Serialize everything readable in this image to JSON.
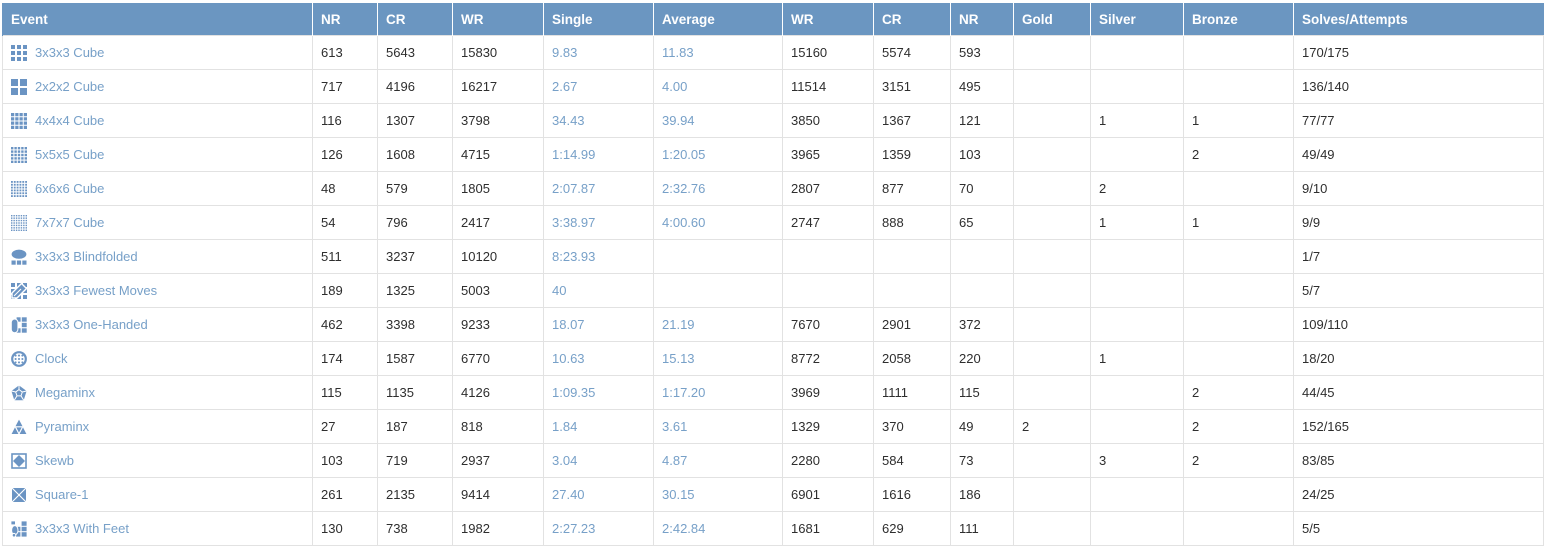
{
  "colors": {
    "header_bg": "#6b96c1",
    "header_text": "#ffffff",
    "link": "#77a0c8",
    "icon_blue": "#6b94c3",
    "cell_text": "#2e2e2e",
    "grid_line": "#e2e2e2",
    "row_bg": "#ffffff"
  },
  "table": {
    "columns": [
      {
        "key": "event",
        "label": "Event"
      },
      {
        "key": "nr_single",
        "label": "NR"
      },
      {
        "key": "cr_single",
        "label": "CR"
      },
      {
        "key": "wr_single",
        "label": "WR"
      },
      {
        "key": "single",
        "label": "Single"
      },
      {
        "key": "average",
        "label": "Average"
      },
      {
        "key": "wr_average",
        "label": "WR"
      },
      {
        "key": "cr_average",
        "label": "CR"
      },
      {
        "key": "nr_average",
        "label": "NR"
      },
      {
        "key": "gold",
        "label": "Gold"
      },
      {
        "key": "silver",
        "label": "Silver"
      },
      {
        "key": "bronze",
        "label": "Bronze"
      },
      {
        "key": "solves_attempts",
        "label": "Solves/Attempts"
      }
    ],
    "rows": [
      {
        "event": "3x3x3 Cube",
        "icon": "cube-3x3-icon",
        "nr_single": "613",
        "cr_single": "5643",
        "wr_single": "15830",
        "single": "9.83",
        "average": "11.83",
        "wr_average": "15160",
        "cr_average": "5574",
        "nr_average": "593",
        "gold": "",
        "silver": "",
        "bronze": "",
        "solves_attempts": "170/175"
      },
      {
        "event": "2x2x2 Cube",
        "icon": "cube-2x2-icon",
        "nr_single": "717",
        "cr_single": "4196",
        "wr_single": "16217",
        "single": "2.67",
        "average": "4.00",
        "wr_average": "11514",
        "cr_average": "3151",
        "nr_average": "495",
        "gold": "",
        "silver": "",
        "bronze": "",
        "solves_attempts": "136/140"
      },
      {
        "event": "4x4x4 Cube",
        "icon": "cube-4x4-icon",
        "nr_single": "116",
        "cr_single": "1307",
        "wr_single": "3798",
        "single": "34.43",
        "average": "39.94",
        "wr_average": "3850",
        "cr_average": "1367",
        "nr_average": "121",
        "gold": "",
        "silver": "1",
        "bronze": "1",
        "solves_attempts": "77/77"
      },
      {
        "event": "5x5x5 Cube",
        "icon": "cube-5x5-icon",
        "nr_single": "126",
        "cr_single": "1608",
        "wr_single": "4715",
        "single": "1:14.99",
        "average": "1:20.05",
        "wr_average": "3965",
        "cr_average": "1359",
        "nr_average": "103",
        "gold": "",
        "silver": "",
        "bronze": "2",
        "solves_attempts": "49/49"
      },
      {
        "event": "6x6x6 Cube",
        "icon": "cube-6x6-icon",
        "nr_single": "48",
        "cr_single": "579",
        "wr_single": "1805",
        "single": "2:07.87",
        "average": "2:32.76",
        "wr_average": "2807",
        "cr_average": "877",
        "nr_average": "70",
        "gold": "",
        "silver": "2",
        "bronze": "",
        "solves_attempts": "9/10"
      },
      {
        "event": "7x7x7 Cube",
        "icon": "cube-7x7-icon",
        "nr_single": "54",
        "cr_single": "796",
        "wr_single": "2417",
        "single": "3:38.97",
        "average": "4:00.60",
        "wr_average": "2747",
        "cr_average": "888",
        "nr_average": "65",
        "gold": "",
        "silver": "1",
        "bronze": "1",
        "solves_attempts": "9/9"
      },
      {
        "event": "3x3x3 Blindfolded",
        "icon": "blindfold-icon",
        "nr_single": "511",
        "cr_single": "3237",
        "wr_single": "10120",
        "single": "8:23.93",
        "average": "",
        "wr_average": "",
        "cr_average": "",
        "nr_average": "",
        "gold": "",
        "silver": "",
        "bronze": "",
        "solves_attempts": "1/7"
      },
      {
        "event": "3x3x3 Fewest Moves",
        "icon": "fewest-moves-icon",
        "nr_single": "189",
        "cr_single": "1325",
        "wr_single": "5003",
        "single": "40",
        "average": "",
        "wr_average": "",
        "cr_average": "",
        "nr_average": "",
        "gold": "",
        "silver": "",
        "bronze": "",
        "solves_attempts": "5/7"
      },
      {
        "event": "3x3x3 One-Handed",
        "icon": "one-handed-icon",
        "nr_single": "462",
        "cr_single": "3398",
        "wr_single": "9233",
        "single": "18.07",
        "average": "21.19",
        "wr_average": "7670",
        "cr_average": "2901",
        "nr_average": "372",
        "gold": "",
        "silver": "",
        "bronze": "",
        "solves_attempts": "109/110"
      },
      {
        "event": "Clock",
        "icon": "clock-icon",
        "nr_single": "174",
        "cr_single": "1587",
        "wr_single": "6770",
        "single": "10.63",
        "average": "15.13",
        "wr_average": "8772",
        "cr_average": "2058",
        "nr_average": "220",
        "gold": "",
        "silver": "1",
        "bronze": "",
        "solves_attempts": "18/20"
      },
      {
        "event": "Megaminx",
        "icon": "megaminx-icon",
        "nr_single": "115",
        "cr_single": "1135",
        "wr_single": "4126",
        "single": "1:09.35",
        "average": "1:17.20",
        "wr_average": "3969",
        "cr_average": "1111",
        "nr_average": "115",
        "gold": "",
        "silver": "",
        "bronze": "2",
        "solves_attempts": "44/45"
      },
      {
        "event": "Pyraminx",
        "icon": "pyraminx-icon",
        "nr_single": "27",
        "cr_single": "187",
        "wr_single": "818",
        "single": "1.84",
        "average": "3.61",
        "wr_average": "1329",
        "cr_average": "370",
        "nr_average": "49",
        "gold": "2",
        "silver": "",
        "bronze": "2",
        "solves_attempts": "152/165"
      },
      {
        "event": "Skewb",
        "icon": "skewb-icon",
        "nr_single": "103",
        "cr_single": "719",
        "wr_single": "2937",
        "single": "3.04",
        "average": "4.87",
        "wr_average": "2280",
        "cr_average": "584",
        "nr_average": "73",
        "gold": "",
        "silver": "3",
        "bronze": "2",
        "solves_attempts": "83/85"
      },
      {
        "event": "Square-1",
        "icon": "square-1-icon",
        "nr_single": "261",
        "cr_single": "2135",
        "wr_single": "9414",
        "single": "27.40",
        "average": "30.15",
        "wr_average": "6901",
        "cr_average": "1616",
        "nr_average": "186",
        "gold": "",
        "silver": "",
        "bronze": "",
        "solves_attempts": "24/25"
      },
      {
        "event": "3x3x3 With Feet",
        "icon": "with-feet-icon",
        "nr_single": "130",
        "cr_single": "738",
        "wr_single": "1982",
        "single": "2:27.23",
        "average": "2:42.84",
        "wr_average": "1681",
        "cr_average": "629",
        "nr_average": "111",
        "gold": "",
        "silver": "",
        "bronze": "",
        "solves_attempts": "5/5"
      }
    ]
  }
}
